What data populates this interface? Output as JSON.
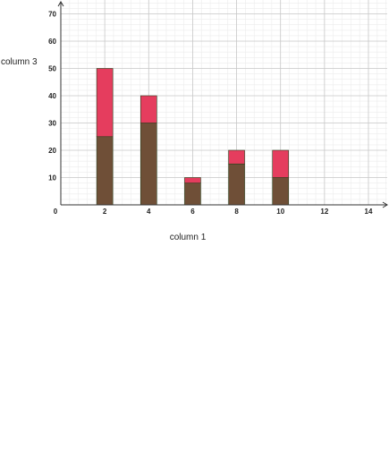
{
  "chart_data": {
    "type": "bar",
    "stacked": true,
    "x": [
      2,
      4,
      6,
      8,
      10
    ],
    "series": [
      {
        "values": [
          25,
          30,
          8,
          15,
          10
        ],
        "color": "#6f4f37"
      },
      {
        "values": [
          25,
          10,
          2,
          5,
          10
        ],
        "color": "#e53d5e"
      }
    ],
    "xlabel": "column 1",
    "ylabel": "column 3",
    "xlim": [
      0,
      15
    ],
    "ylim": [
      0,
      70
    ],
    "x_ticks": [
      0,
      2,
      4,
      6,
      8,
      10,
      12,
      14
    ],
    "y_ticks": [
      10,
      20,
      30,
      40,
      50,
      60,
      70
    ],
    "x_tick_labels": [
      "0",
      "2",
      "4",
      "6",
      "8",
      "10",
      "12",
      "14"
    ],
    "y_tick_labels": [
      "10",
      "20",
      "30",
      "40",
      "50",
      "60",
      "70"
    ],
    "grid": true,
    "legend": "none"
  },
  "colors": {
    "grid_major": "#c8c8c8",
    "grid_minor": "#ececec",
    "axis": "#333333",
    "bar_outline": "#2c3f1c"
  }
}
